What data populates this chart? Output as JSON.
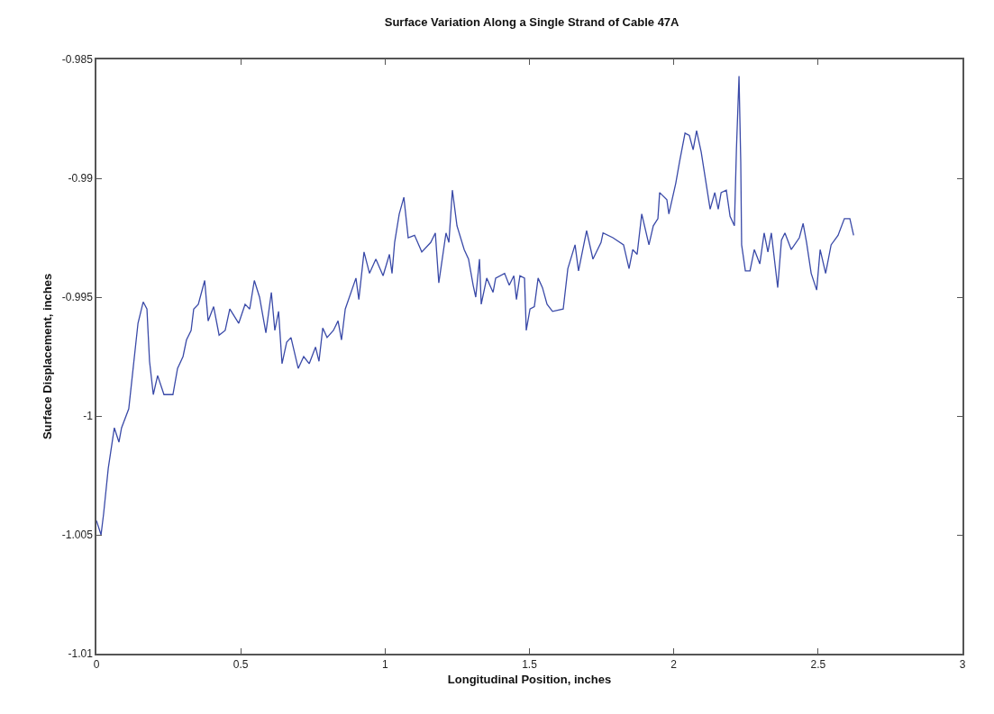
{
  "chart_data": {
    "type": "line",
    "title": "Surface Variation Along a Single Strand of Cable 47A",
    "xlabel": "Longitudinal Position, inches",
    "ylabel": "Surface Displacement, inches",
    "x": [
      0.0,
      0.016,
      0.025,
      0.041,
      0.062,
      0.078,
      0.087,
      0.112,
      0.128,
      0.144,
      0.162,
      0.175,
      0.184,
      0.197,
      0.212,
      0.234,
      0.265,
      0.281,
      0.3,
      0.312,
      0.328,
      0.337,
      0.353,
      0.375,
      0.387,
      0.406,
      0.425,
      0.446,
      0.462,
      0.493,
      0.515,
      0.531,
      0.547,
      0.565,
      0.587,
      0.606,
      0.618,
      0.631,
      0.643,
      0.659,
      0.674,
      0.699,
      0.718,
      0.737,
      0.759,
      0.771,
      0.784,
      0.799,
      0.821,
      0.837,
      0.849,
      0.862,
      0.899,
      0.909,
      0.927,
      0.946,
      0.968,
      0.993,
      1.015,
      1.024,
      1.033,
      1.049,
      1.065,
      1.08,
      1.102,
      1.127,
      1.158,
      1.174,
      1.186,
      1.211,
      1.221,
      1.233,
      1.249,
      1.274,
      1.289,
      1.305,
      1.314,
      1.327,
      1.333,
      1.352,
      1.374,
      1.383,
      1.414,
      1.43,
      1.446,
      1.455,
      1.467,
      1.483,
      1.489,
      1.502,
      1.517,
      1.53,
      1.545,
      1.561,
      1.58,
      1.617,
      1.633,
      1.658,
      1.67,
      1.698,
      1.72,
      1.748,
      1.755,
      1.789,
      1.826,
      1.845,
      1.858,
      1.873,
      1.889,
      1.914,
      1.929,
      1.945,
      1.951,
      1.976,
      1.983,
      2.007,
      2.02,
      2.039,
      2.054,
      2.067,
      2.079,
      2.095,
      2.126,
      2.142,
      2.154,
      2.164,
      2.182,
      2.195,
      2.21,
      2.217,
      2.226,
      2.232,
      2.235,
      2.248,
      2.264,
      2.279,
      2.298,
      2.313,
      2.326,
      2.338,
      2.36,
      2.373,
      2.385,
      2.407,
      2.435,
      2.448,
      2.46,
      2.476,
      2.495,
      2.507,
      2.526,
      2.545,
      2.569,
      2.591,
      2.61,
      2.623
    ],
    "series": [
      {
        "color": "#3a4aa8",
        "values": [
          -1.0044,
          -1.005,
          -1.0041,
          -1.0022,
          -1.0005,
          -1.0011,
          -1.0005,
          -0.9997,
          -0.9979,
          -0.9961,
          -0.9952,
          -0.9955,
          -0.9977,
          -0.9991,
          -0.9983,
          -0.9991,
          -0.9991,
          -0.998,
          -0.9975,
          -0.9968,
          -0.9964,
          -0.9955,
          -0.9953,
          -0.9943,
          -0.996,
          -0.9954,
          -0.9966,
          -0.9964,
          -0.9955,
          -0.9961,
          -0.9953,
          -0.9955,
          -0.9943,
          -0.995,
          -0.9965,
          -0.9948,
          -0.9964,
          -0.9956,
          -0.9978,
          -0.9969,
          -0.9967,
          -0.998,
          -0.9975,
          -0.9978,
          -0.9971,
          -0.9977,
          -0.9963,
          -0.9967,
          -0.9964,
          -0.996,
          -0.9968,
          -0.9955,
          -0.9942,
          -0.9951,
          -0.9931,
          -0.994,
          -0.9934,
          -0.9941,
          -0.9932,
          -0.994,
          -0.9927,
          -0.9915,
          -0.9908,
          -0.9925,
          -0.9924,
          -0.9931,
          -0.9927,
          -0.9923,
          -0.9944,
          -0.9923,
          -0.9927,
          -0.9905,
          -0.992,
          -0.993,
          -0.9934,
          -0.9945,
          -0.995,
          -0.9934,
          -0.9953,
          -0.9942,
          -0.9948,
          -0.9942,
          -0.994,
          -0.9945,
          -0.9941,
          -0.9951,
          -0.9941,
          -0.9942,
          -0.9964,
          -0.9955,
          -0.9954,
          -0.9942,
          -0.9946,
          -0.9953,
          -0.9956,
          -0.9955,
          -0.9938,
          -0.9928,
          -0.9939,
          -0.9922,
          -0.9934,
          -0.9927,
          -0.9923,
          -0.9925,
          -0.9928,
          -0.9938,
          -0.993,
          -0.9932,
          -0.9915,
          -0.9928,
          -0.992,
          -0.9917,
          -0.9906,
          -0.9909,
          -0.9915,
          -0.9902,
          -0.9893,
          -0.9881,
          -0.9882,
          -0.9888,
          -0.988,
          -0.9889,
          -0.9913,
          -0.9906,
          -0.9913,
          -0.9906,
          -0.9905,
          -0.9916,
          -0.992,
          -0.9888,
          -0.9857,
          -0.9893,
          -0.9928,
          -0.9939,
          -0.9939,
          -0.993,
          -0.9936,
          -0.9923,
          -0.9931,
          -0.9923,
          -0.9946,
          -0.9926,
          -0.9923,
          -0.993,
          -0.9925,
          -0.9919,
          -0.9927,
          -0.994,
          -0.9947,
          -0.993,
          -0.994,
          -0.9928,
          -0.9924,
          -0.9917,
          -0.9917,
          -0.9924
        ]
      }
    ],
    "xlim": [
      0,
      3
    ],
    "xticks": [
      0,
      0.5,
      1,
      1.5,
      2,
      2.5,
      3
    ],
    "ylim": [
      -1.01,
      -0.985
    ],
    "yticks": [
      -1.01,
      -1.005,
      -1,
      -0.995,
      -0.99,
      -0.985
    ],
    "grid": false,
    "marker": "none",
    "line_style": "solid"
  }
}
